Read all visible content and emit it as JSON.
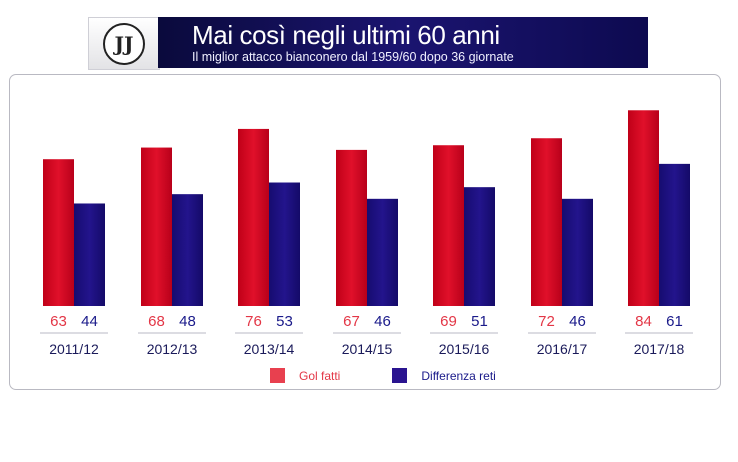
{
  "header": {
    "logo_text": "JJ",
    "title": "Mai così negli ultimi 60 anni",
    "subtitle": "Il miglior attacco bianconero dal 1959/60 dopo 36 giornate"
  },
  "colors": {
    "gol_fatti": "#e0102a",
    "differenza_reti": "#23148c",
    "value_red": "#e33646",
    "value_blue": "#1a1a8a",
    "header_bg": "#14106a"
  },
  "chart_data": {
    "type": "bar",
    "categories": [
      "2011/12",
      "2012/13",
      "2013/14",
      "2014/15",
      "2015/16",
      "2016/17",
      "2017/18"
    ],
    "series": [
      {
        "name": "Gol fatti",
        "values": [
          63,
          68,
          76,
          67,
          69,
          72,
          84
        ]
      },
      {
        "name": "Differenza reti",
        "values": [
          44,
          48,
          53,
          46,
          51,
          46,
          61
        ]
      }
    ],
    "title": "Mai così negli ultimi 60 anni",
    "subtitle": "Il miglior attacco bianconero dal 1959/60 dopo 36 giornate",
    "xlabel": "",
    "ylabel": "",
    "legend_position": "bottom-center",
    "grid": false
  }
}
